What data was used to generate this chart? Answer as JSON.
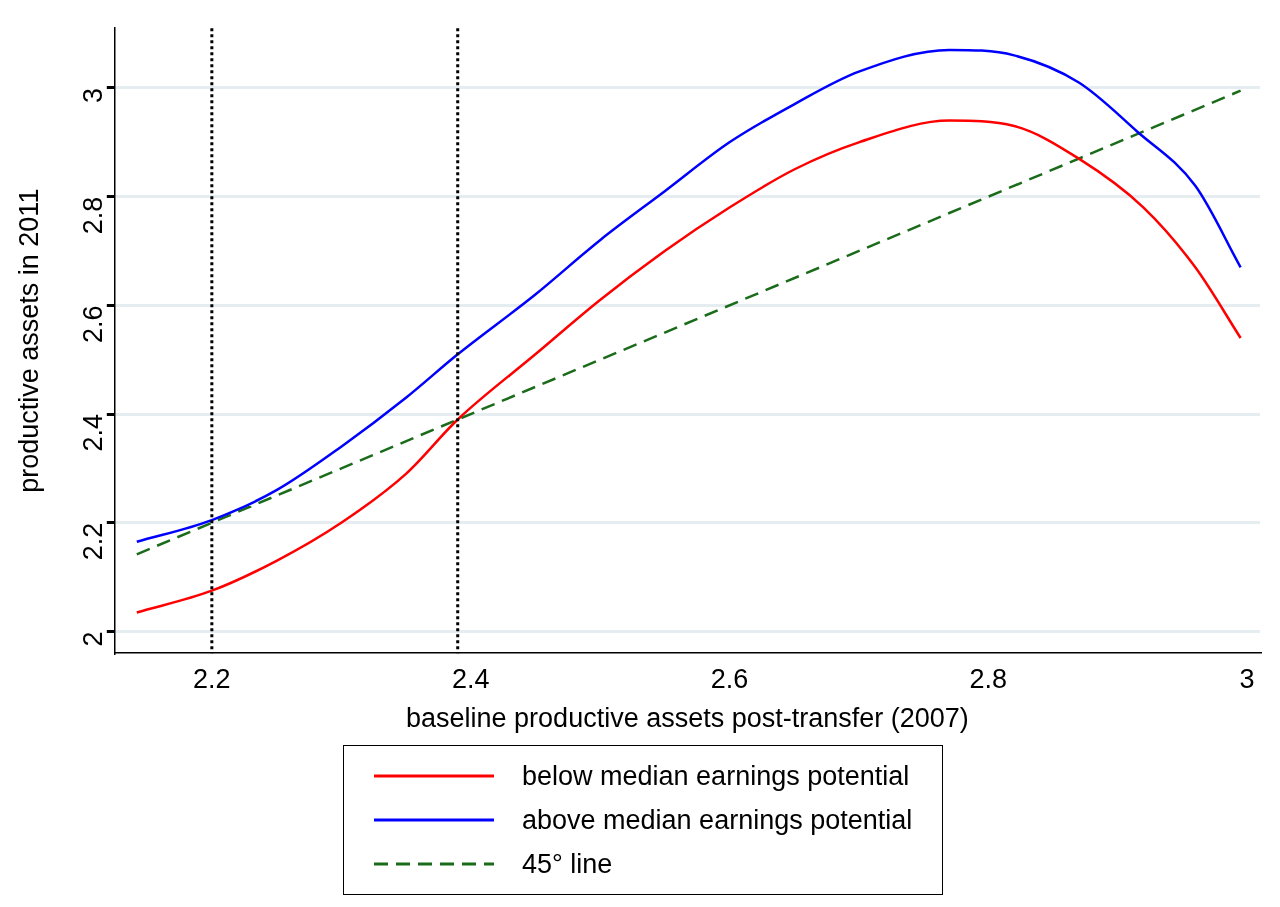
{
  "chart_data": {
    "type": "line",
    "xlabel": "baseline productive assets post-transfer (2007)",
    "ylabel": "productive assets in 2011",
    "xlim": [
      2.125,
      3.01
    ],
    "xticks": [
      2.2,
      2.4,
      2.6,
      2.8,
      3
    ],
    "ylim": [
      1.96,
      3.11
    ],
    "yticks": [
      2,
      2.2,
      2.4,
      2.6,
      2.8,
      3
    ],
    "grid": "y",
    "legend": "bottom",
    "marker": "none",
    "series": [
      {
        "name": "below median earnings potential",
        "color": "#ff0000",
        "line_style": "solid",
        "x": [
          2.142,
          2.2,
          2.25,
          2.3,
          2.35,
          2.39,
          2.45,
          2.5,
          2.55,
          2.6,
          2.65,
          2.7,
          2.77,
          2.82,
          2.87,
          2.92,
          2.96,
          2.995
        ],
        "values": [
          2.035,
          2.075,
          2.13,
          2.2,
          2.29,
          2.39,
          2.51,
          2.61,
          2.7,
          2.78,
          2.85,
          2.9,
          2.94,
          2.93,
          2.87,
          2.78,
          2.67,
          2.54
        ]
      },
      {
        "name": "above median earnings potential",
        "color": "#0000ff",
        "line_style": "solid",
        "x": [
          2.142,
          2.2,
          2.25,
          2.3,
          2.35,
          2.39,
          2.45,
          2.5,
          2.55,
          2.6,
          2.65,
          2.7,
          2.77,
          2.82,
          2.87,
          2.915,
          2.96,
          2.995
        ],
        "values": [
          2.165,
          2.205,
          2.26,
          2.34,
          2.43,
          2.51,
          2.62,
          2.72,
          2.81,
          2.9,
          2.97,
          3.03,
          3.07,
          3.06,
          3.01,
          2.92,
          2.82,
          2.67
        ]
      },
      {
        "name": "45° line",
        "color": "#1a6b1a",
        "line_style": "dashed",
        "x": [
          2.142,
          2.995
        ],
        "values": [
          2.142,
          2.995
        ]
      }
    ],
    "ref_lines": [
      {
        "axis": "x",
        "value": 2.2,
        "color": "#000000",
        "line_style": "dotted"
      },
      {
        "axis": "x",
        "value": 2.39,
        "color": "#000000",
        "line_style": "dotted"
      }
    ]
  }
}
